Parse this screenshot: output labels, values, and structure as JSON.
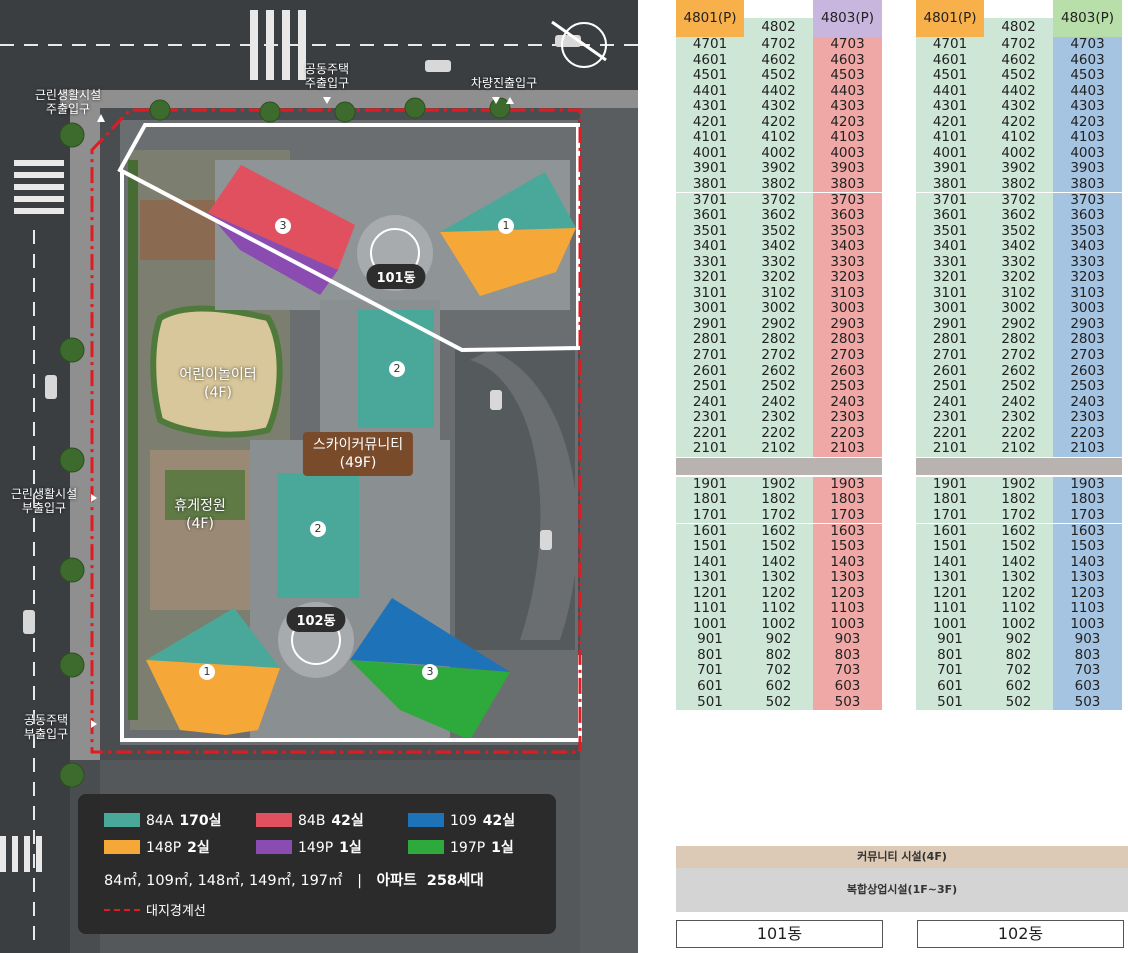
{
  "site_plan": {
    "entrances": [
      {
        "id": "residential-main",
        "label": "공동주택\n주출입구"
      },
      {
        "id": "vehicle",
        "label": "차량진출입구"
      },
      {
        "id": "retail-main",
        "label": "근린생활시설\n주출입구"
      },
      {
        "id": "retail-sub",
        "label": "근린생활시설\n부출입구"
      },
      {
        "id": "residential-sub",
        "label": "공동주택\n부출입구"
      }
    ],
    "facilities": {
      "playground": "어린이놀이터\n(4F)",
      "rest_garden": "휴게정원\n(4F)",
      "sky_community": "스카이커뮤니티\n(49F)"
    },
    "buildings": {
      "b101": "101동",
      "b102": "102동"
    },
    "unit_numbers": [
      "1",
      "2",
      "3"
    ],
    "legend": {
      "items": [
        {
          "color": "#4aa89a",
          "name": "84A",
          "count": "170실"
        },
        {
          "color": "#e0505e",
          "name": "84B",
          "count": "42실"
        },
        {
          "color": "#1e72b8",
          "name": "109",
          "count": "42실"
        },
        {
          "color": "#f5a838",
          "name": "148P",
          "count": "2실"
        },
        {
          "color": "#8a4cb0",
          "name": "149P",
          "count": "1실"
        },
        {
          "color": "#2eaa3c",
          "name": "197P",
          "count": "1실"
        }
      ],
      "areas": "84㎡, 109㎡, 148㎡, 149㎡, 197㎡",
      "separator": "|",
      "total": "아파트  258세대",
      "boundary": "대지경계선"
    }
  },
  "stack_chart": {
    "colors": {
      "green": "#cde6d6",
      "red": "#f0a8a6",
      "blue": "#a4c4e2",
      "orange": "#f7b04a",
      "purple": "#c9b6de",
      "lightgreen": "#b8deaa",
      "gap": "#b8b3b0",
      "community": "#dccab6",
      "retail": "#d4d4d4"
    },
    "b101": {
      "penthouse": [
        "4801(P)",
        "4802",
        "4803(P)"
      ],
      "upper": [
        [
          "4701",
          "4702",
          "4703"
        ],
        [
          "4601",
          "4602",
          "4603"
        ],
        [
          "4501",
          "4502",
          "4503"
        ],
        [
          "4401",
          "4402",
          "4403"
        ],
        [
          "4301",
          "4302",
          "4303"
        ],
        [
          "4201",
          "4202",
          "4203"
        ],
        [
          "4101",
          "4102",
          "4103"
        ],
        [
          "4001",
          "4002",
          "4003"
        ],
        [
          "3901",
          "3902",
          "3903"
        ],
        [
          "3801",
          "3802",
          "3803"
        ],
        [
          "3701",
          "3702",
          "3703"
        ],
        [
          "3601",
          "3602",
          "3603"
        ],
        [
          "3501",
          "3502",
          "3503"
        ],
        [
          "3401",
          "3402",
          "3403"
        ],
        [
          "3301",
          "3302",
          "3303"
        ],
        [
          "3201",
          "3202",
          "3203"
        ],
        [
          "3101",
          "3102",
          "3103"
        ],
        [
          "3001",
          "3002",
          "3003"
        ],
        [
          "2901",
          "2902",
          "2903"
        ],
        [
          "2801",
          "2802",
          "2803"
        ],
        [
          "2701",
          "2702",
          "2703"
        ],
        [
          "2601",
          "2602",
          "2603"
        ],
        [
          "2501",
          "2502",
          "2503"
        ],
        [
          "2401",
          "2402",
          "2403"
        ],
        [
          "2301",
          "2302",
          "2303"
        ],
        [
          "2201",
          "2202",
          "2203"
        ],
        [
          "2101",
          "2102",
          "2103"
        ]
      ],
      "lower": [
        [
          "1901",
          "1902",
          "1903"
        ],
        [
          "1801",
          "1802",
          "1803"
        ],
        [
          "1701",
          "1702",
          "1703"
        ],
        [
          "1601",
          "1602",
          "1603"
        ],
        [
          "1501",
          "1502",
          "1503"
        ],
        [
          "1401",
          "1402",
          "1403"
        ],
        [
          "1301",
          "1302",
          "1303"
        ],
        [
          "1201",
          "1202",
          "1203"
        ],
        [
          "1101",
          "1102",
          "1103"
        ],
        [
          "1001",
          "1002",
          "1003"
        ],
        [
          "901",
          "902",
          "903"
        ],
        [
          "801",
          "802",
          "803"
        ],
        [
          "701",
          "702",
          "703"
        ],
        [
          "601",
          "602",
          "603"
        ],
        [
          "501",
          "502",
          "503"
        ]
      ],
      "label": "101동"
    },
    "b102": {
      "penthouse": [
        "4801(P)",
        "4802",
        "4803(P)"
      ],
      "upper": [
        [
          "4701",
          "4702",
          "4703"
        ],
        [
          "4601",
          "4602",
          "4603"
        ],
        [
          "4501",
          "4502",
          "4503"
        ],
        [
          "4401",
          "4402",
          "4403"
        ],
        [
          "4301",
          "4302",
          "4303"
        ],
        [
          "4201",
          "4202",
          "4203"
        ],
        [
          "4101",
          "4102",
          "4103"
        ],
        [
          "4001",
          "4002",
          "4003"
        ],
        [
          "3901",
          "3902",
          "3903"
        ],
        [
          "3801",
          "3802",
          "3803"
        ],
        [
          "3701",
          "3702",
          "3703"
        ],
        [
          "3601",
          "3602",
          "3603"
        ],
        [
          "3501",
          "3502",
          "3503"
        ],
        [
          "3401",
          "3402",
          "3403"
        ],
        [
          "3301",
          "3302",
          "3303"
        ],
        [
          "3201",
          "3202",
          "3203"
        ],
        [
          "3101",
          "3102",
          "3103"
        ],
        [
          "3001",
          "3002",
          "3003"
        ],
        [
          "2901",
          "2902",
          "2903"
        ],
        [
          "2801",
          "2802",
          "2803"
        ],
        [
          "2701",
          "2702",
          "2703"
        ],
        [
          "2601",
          "2602",
          "2603"
        ],
        [
          "2501",
          "2502",
          "2503"
        ],
        [
          "2401",
          "2402",
          "2403"
        ],
        [
          "2301",
          "2302",
          "2303"
        ],
        [
          "2201",
          "2202",
          "2203"
        ],
        [
          "2101",
          "2102",
          "2103"
        ]
      ],
      "lower": [
        [
          "1901",
          "1902",
          "1903"
        ],
        [
          "1801",
          "1802",
          "1803"
        ],
        [
          "1701",
          "1702",
          "1703"
        ],
        [
          "1601",
          "1602",
          "1603"
        ],
        [
          "1501",
          "1502",
          "1503"
        ],
        [
          "1401",
          "1402",
          "1403"
        ],
        [
          "1301",
          "1302",
          "1303"
        ],
        [
          "1201",
          "1202",
          "1203"
        ],
        [
          "1101",
          "1102",
          "1103"
        ],
        [
          "1001",
          "1002",
          "1003"
        ],
        [
          "901",
          "902",
          "903"
        ],
        [
          "801",
          "802",
          "803"
        ],
        [
          "701",
          "702",
          "703"
        ],
        [
          "601",
          "602",
          "603"
        ],
        [
          "501",
          "502",
          "503"
        ]
      ],
      "label": "102동"
    },
    "community": "커뮤니티 시설(4F)",
    "retail": "복합상업시설(1F~3F)"
  }
}
